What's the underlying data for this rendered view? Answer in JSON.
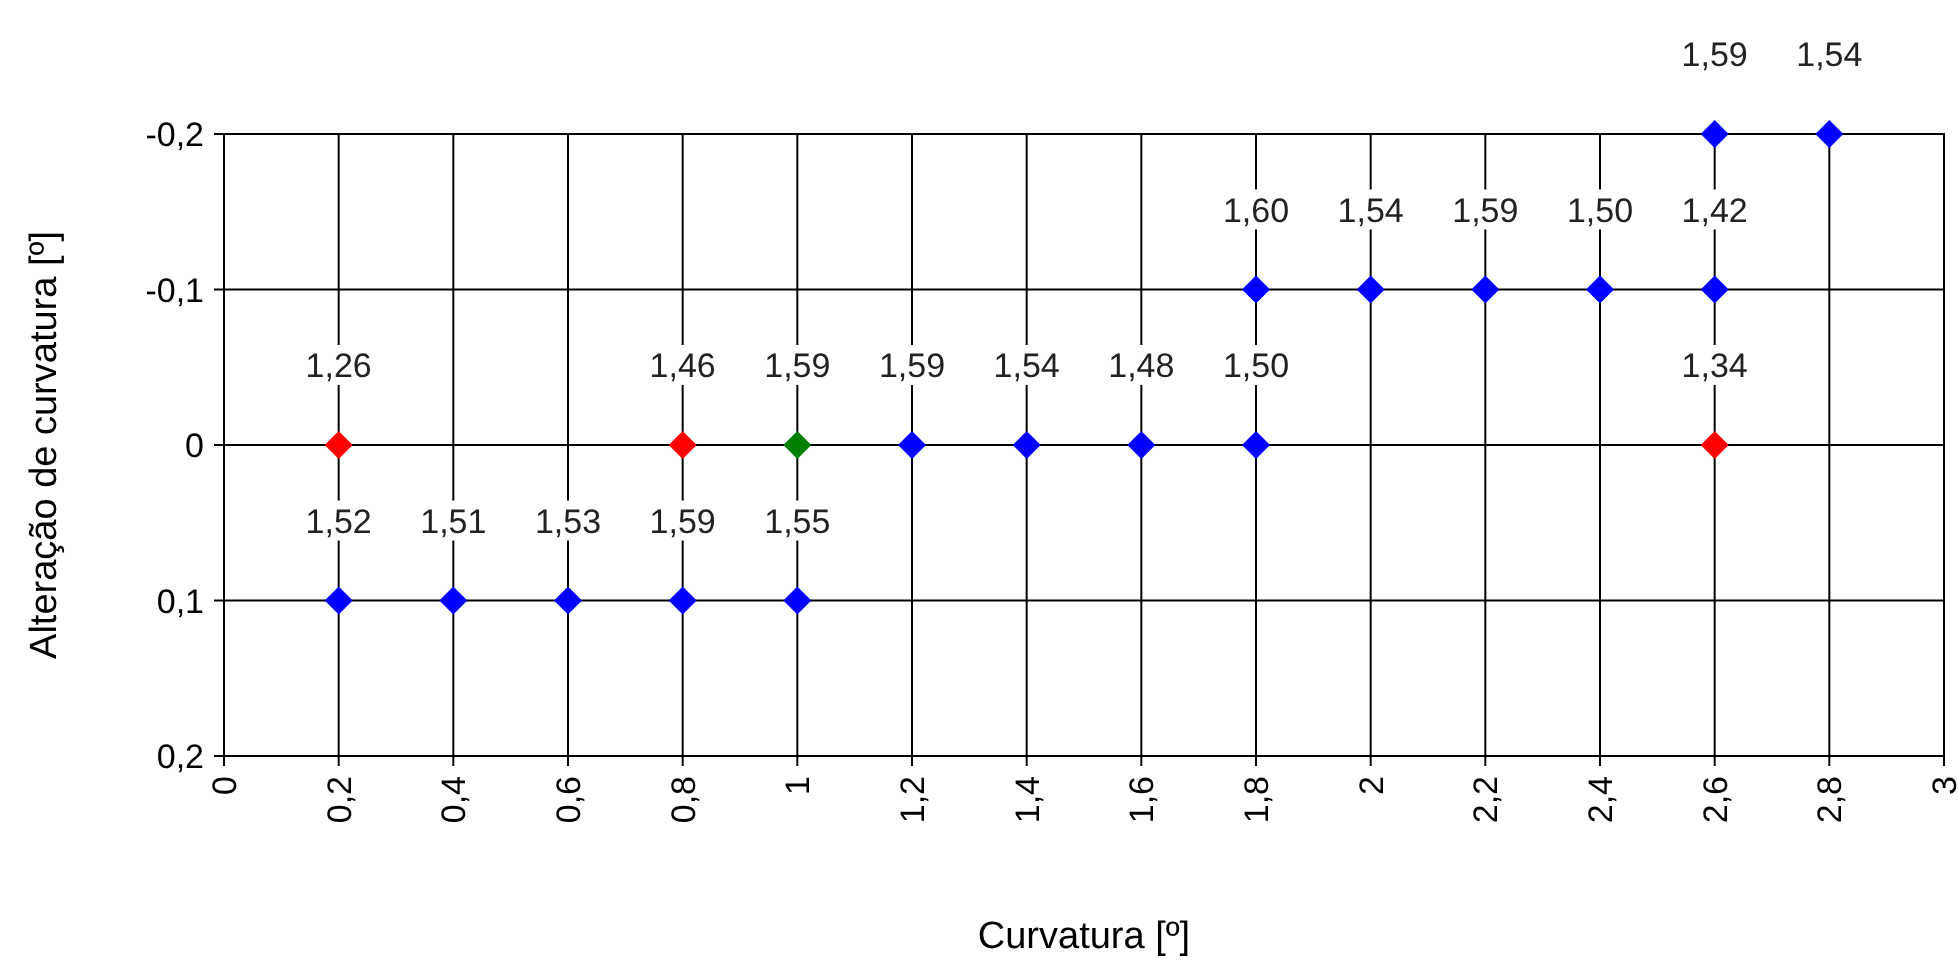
{
  "chart_data": {
    "type": "scatter",
    "xlabel": "Curvatura [º]",
    "ylabel": "Alteração de curvatura [º]",
    "xlim": [
      0,
      3
    ],
    "ylim": [
      0.2,
      -0.2
    ],
    "xticks": [
      0,
      {
        "value": 0.2,
        "label": "0,2"
      },
      {
        "value": 0.4,
        "label": "0,4"
      },
      {
        "value": 0.6,
        "label": "0,6"
      },
      {
        "value": 0.8,
        "label": "0,8"
      },
      1,
      {
        "value": 1.2,
        "label": "1,2"
      },
      {
        "value": 1.4,
        "label": "1,4"
      },
      {
        "value": 1.6,
        "label": "1,6"
      },
      {
        "value": 1.8,
        "label": "1,8"
      },
      2,
      {
        "value": 2.2,
        "label": "2,2"
      },
      {
        "value": 2.4,
        "label": "2,4"
      },
      {
        "value": 2.6,
        "label": "2,6"
      },
      {
        "value": 2.8,
        "label": "2,8"
      },
      3
    ],
    "yticks": [
      {
        "value": -0.2,
        "label": "-0,2"
      },
      {
        "value": -0.1,
        "label": "-0,1"
      },
      0,
      {
        "value": 0.1,
        "label": "0,1"
      },
      {
        "value": 0.2,
        "label": "0,2"
      }
    ],
    "grid": true,
    "marker": "diamond",
    "series": [
      {
        "color": "#0000ff",
        "x": [
          0.2,
          0.4,
          0.6,
          0.8,
          1,
          1.2,
          1.4,
          1.6,
          1.8,
          1.8,
          2,
          2.2,
          2.4,
          2.6,
          2.6,
          2.8
        ],
        "values": [
          0.1,
          0.1,
          0.1,
          0.1,
          0.1,
          0,
          0,
          0,
          0,
          -0.1,
          -0.1,
          -0.1,
          -0.1,
          -0.1,
          -0.2,
          -0.2
        ]
      },
      {
        "color": "#ff0000",
        "x": [
          0.2,
          0.8,
          2.6
        ],
        "values": [
          0,
          0,
          0
        ]
      },
      {
        "color": "#008000",
        "x": [
          1
        ],
        "values": [
          0
        ]
      }
    ],
    "annotations": [
      {
        "text": "1,52",
        "x": 0.2,
        "y": 0.1
      },
      {
        "text": "1,51",
        "x": 0.4,
        "y": 0.1
      },
      {
        "text": "1,53",
        "x": 0.6,
        "y": 0.1
      },
      {
        "text": "1,59",
        "x": 0.8,
        "y": 0.1
      },
      {
        "text": "1,55",
        "x": 1,
        "y": 0.1
      },
      {
        "text": "1,26",
        "x": 0.2,
        "y": 0
      },
      {
        "text": "1,46",
        "x": 0.8,
        "y": 0
      },
      {
        "text": "1,59",
        "x": 1,
        "y": 0
      },
      {
        "text": "1,59",
        "x": 1.2,
        "y": 0
      },
      {
        "text": "1,54",
        "x": 1.4,
        "y": 0
      },
      {
        "text": "1,48",
        "x": 1.6,
        "y": 0
      },
      {
        "text": "1,50",
        "x": 1.8,
        "y": 0
      },
      {
        "text": "1,34",
        "x": 2.6,
        "y": 0
      },
      {
        "text": "1,60",
        "x": 1.8,
        "y": -0.1
      },
      {
        "text": "1,54",
        "x": 2,
        "y": -0.1
      },
      {
        "text": "1,59",
        "x": 2.2,
        "y": -0.1
      },
      {
        "text": "1,50",
        "x": 2.4,
        "y": -0.1
      },
      {
        "text": "1,42",
        "x": 2.6,
        "y": -0.1
      },
      {
        "text": "1,59",
        "x": 2.6,
        "y": -0.2
      },
      {
        "text": "1,54",
        "x": 2.8,
        "y": -0.2
      }
    ]
  }
}
